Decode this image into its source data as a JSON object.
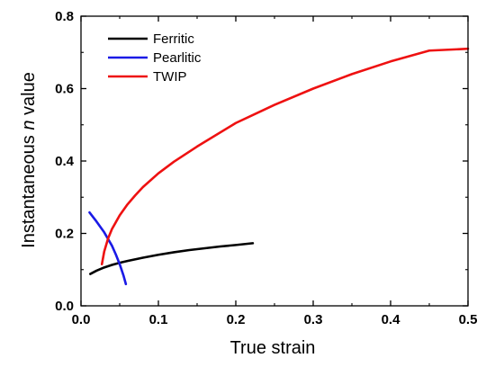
{
  "chart_data": {
    "type": "line",
    "title": "",
    "xlabel": "True strain",
    "ylabel": {
      "prefix": "Instantaneous ",
      "italic": "n",
      "suffix": " value"
    },
    "xlim": [
      0.0,
      0.5
    ],
    "ylim": [
      0.0,
      0.8
    ],
    "x_ticks": [
      "0.0",
      "0.1",
      "0.2",
      "0.3",
      "0.4",
      "0.5"
    ],
    "y_ticks": [
      "0.0",
      "0.2",
      "0.4",
      "0.6",
      "0.8"
    ],
    "grid": false,
    "legend_position": "top-left",
    "series": [
      {
        "name": "Ferritic",
        "color": "#000000",
        "x": [
          0.012,
          0.02,
          0.03,
          0.04,
          0.05,
          0.06,
          0.08,
          0.1,
          0.12,
          0.14,
          0.16,
          0.18,
          0.2,
          0.222
        ],
        "y": [
          0.088,
          0.097,
          0.106,
          0.113,
          0.119,
          0.124,
          0.133,
          0.141,
          0.148,
          0.154,
          0.159,
          0.164,
          0.168,
          0.173
        ]
      },
      {
        "name": "Pearlitic",
        "color": "#1a1ae6",
        "x": [
          0.011,
          0.02,
          0.03,
          0.04,
          0.045,
          0.05,
          0.055,
          0.058
        ],
        "y": [
          0.258,
          0.233,
          0.203,
          0.166,
          0.142,
          0.115,
          0.083,
          0.06
        ]
      },
      {
        "name": "TWIP",
        "color": "#ee1111",
        "x": [
          0.027,
          0.03,
          0.035,
          0.04,
          0.05,
          0.06,
          0.07,
          0.08,
          0.1,
          0.12,
          0.15,
          0.2,
          0.25,
          0.3,
          0.35,
          0.4,
          0.45,
          0.5
        ],
        "y": [
          0.115,
          0.15,
          0.186,
          0.212,
          0.25,
          0.28,
          0.305,
          0.328,
          0.366,
          0.398,
          0.44,
          0.505,
          0.555,
          0.6,
          0.64,
          0.675,
          0.705,
          0.71
        ]
      }
    ]
  }
}
